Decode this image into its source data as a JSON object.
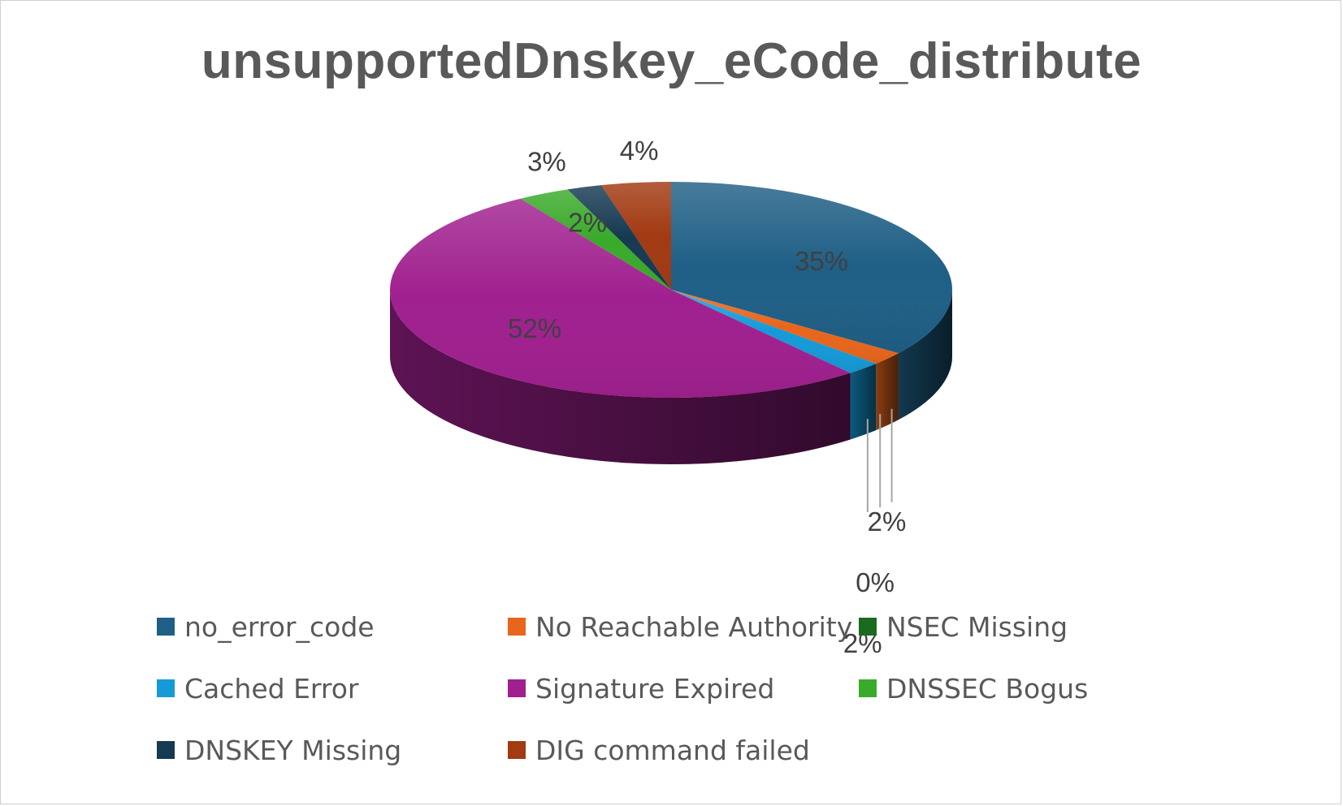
{
  "chart_data": {
    "type": "pie",
    "title": "unsupportedDnskey_eCode_distribute",
    "legend_position": "bottom",
    "slices": [
      {
        "name": "no_error_code",
        "value": 35,
        "label": "35%",
        "color": "#1f5f86"
      },
      {
        "name": "No Reachable Authority",
        "value": 2,
        "label": "2%",
        "color": "#e8651c"
      },
      {
        "name": "NSEC Missing",
        "value": 0,
        "label": "0%",
        "color": "#1a6b1f"
      },
      {
        "name": "Cached Error",
        "value": 2,
        "label": "2%",
        "color": "#159ad8"
      },
      {
        "name": "Signature Expired",
        "value": 52,
        "label": "52%",
        "color": "#a0208f"
      },
      {
        "name": "DNSSEC Bogus",
        "value": 3,
        "label": "3%",
        "color": "#3aaa2a"
      },
      {
        "name": "DNSKEY Missing",
        "value": 2,
        "label": "2%",
        "color": "#163a52"
      },
      {
        "name": "DIG command failed",
        "value": 4,
        "label": "4%",
        "color": "#a23a12"
      }
    ]
  }
}
